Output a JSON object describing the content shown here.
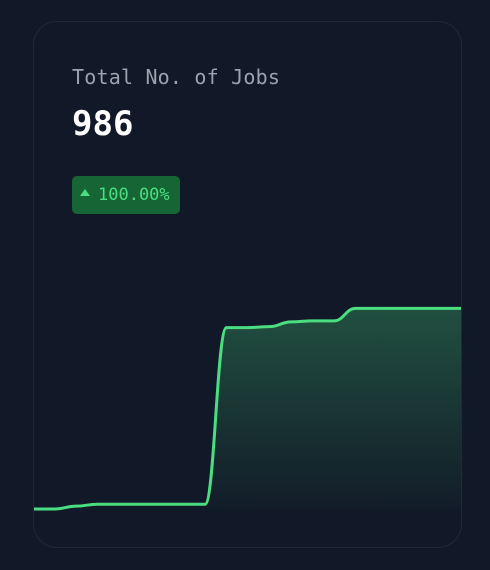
{
  "card": {
    "title": "Total No. of Jobs",
    "value": "986",
    "change": {
      "text": "100.00%",
      "direction": "up",
      "icon": "triangle-up-icon"
    }
  },
  "colors": {
    "background": "#111827",
    "card_border": "#1f2937",
    "accent": "#4ade80",
    "badge_bg": "#166534",
    "label": "#9ca3af",
    "value": "#ffffff"
  },
  "chart_data": {
    "type": "area",
    "title": "",
    "xlabel": "",
    "ylabel": "",
    "x": [
      0,
      1,
      2,
      3,
      4,
      5,
      6,
      7,
      8,
      9,
      10,
      11,
      12,
      13,
      14,
      15,
      16,
      17,
      18,
      19,
      20
    ],
    "values": [
      2,
      2,
      8,
      12,
      12,
      12,
      12,
      12,
      12,
      380,
      380,
      382,
      392,
      394,
      394,
      420,
      420,
      420,
      420,
      420,
      420
    ],
    "ylim": [
      0,
      1000
    ],
    "grid": false,
    "legend": "none"
  }
}
